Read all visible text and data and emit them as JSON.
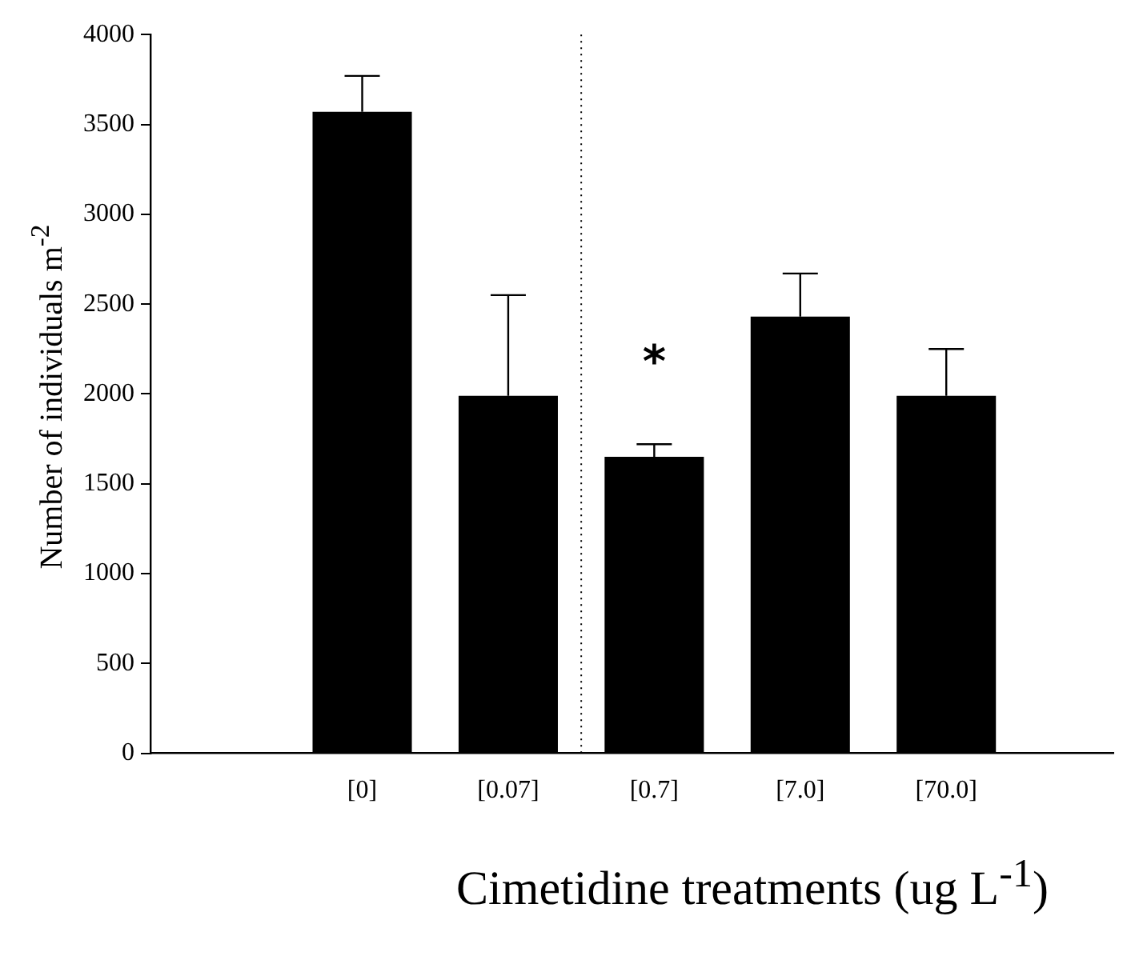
{
  "chart_data": {
    "type": "bar",
    "xlabel": "Cimetidine treatments (ug L$^{-1}$)",
    "ylabel": "Number of individuals m$^{-2}$",
    "categories": [
      "[0]",
      "[0.07]",
      "[0.7]",
      "[7.0]",
      "[70.0]"
    ],
    "values": [
      3570,
      1990,
      1650,
      2430,
      1990
    ],
    "color": "#000000",
    "errors": [
      [
        3570,
        3770
      ],
      [
        1990,
        2550
      ],
      [
        1650,
        1720
      ],
      [
        2430,
        2670
      ],
      [
        1990,
        2250
      ]
    ],
    "ylim": [
      0,
      4000
    ],
    "yticks": [
      0,
      500,
      1000,
      1500,
      2000,
      2500,
      3000,
      3500,
      4000
    ],
    "grid": false,
    "legend": false,
    "annotations": [
      "*"
    ]
  }
}
